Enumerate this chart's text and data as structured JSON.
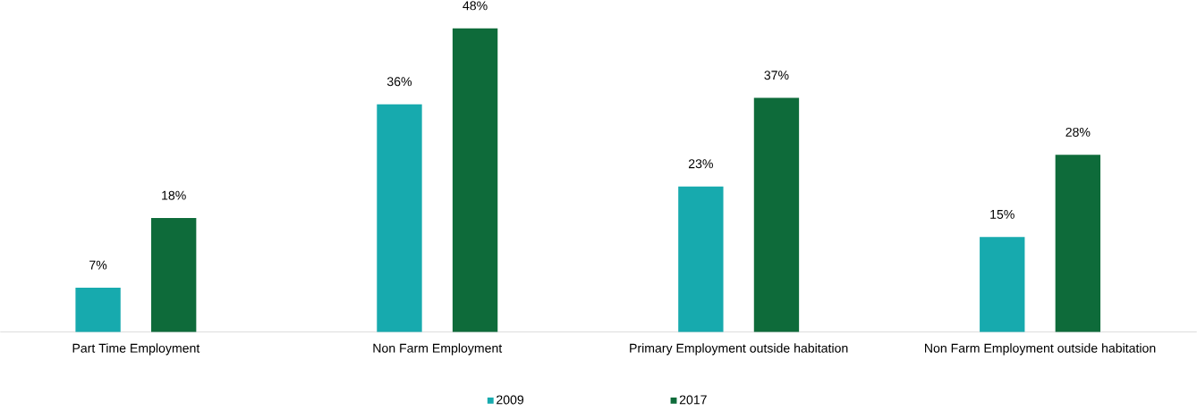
{
  "chart_data": {
    "type": "bar",
    "categories": [
      "Part Time Employment",
      "Non Farm Employment",
      "Primary Employment outside habitation",
      "Non Farm Employment outside habitation"
    ],
    "series": [
      {
        "name": "2009",
        "color": "#17aaae",
        "values": [
          7,
          36,
          23,
          15
        ],
        "value_labels": [
          "7%",
          "36%",
          "23%",
          "15%"
        ]
      },
      {
        "name": "2017",
        "color": "#0e6b3a",
        "values": [
          18,
          48,
          37,
          28
        ],
        "value_labels": [
          "18%",
          "48%",
          "37%",
          "28%"
        ]
      }
    ],
    "legend": "bottom"
  }
}
